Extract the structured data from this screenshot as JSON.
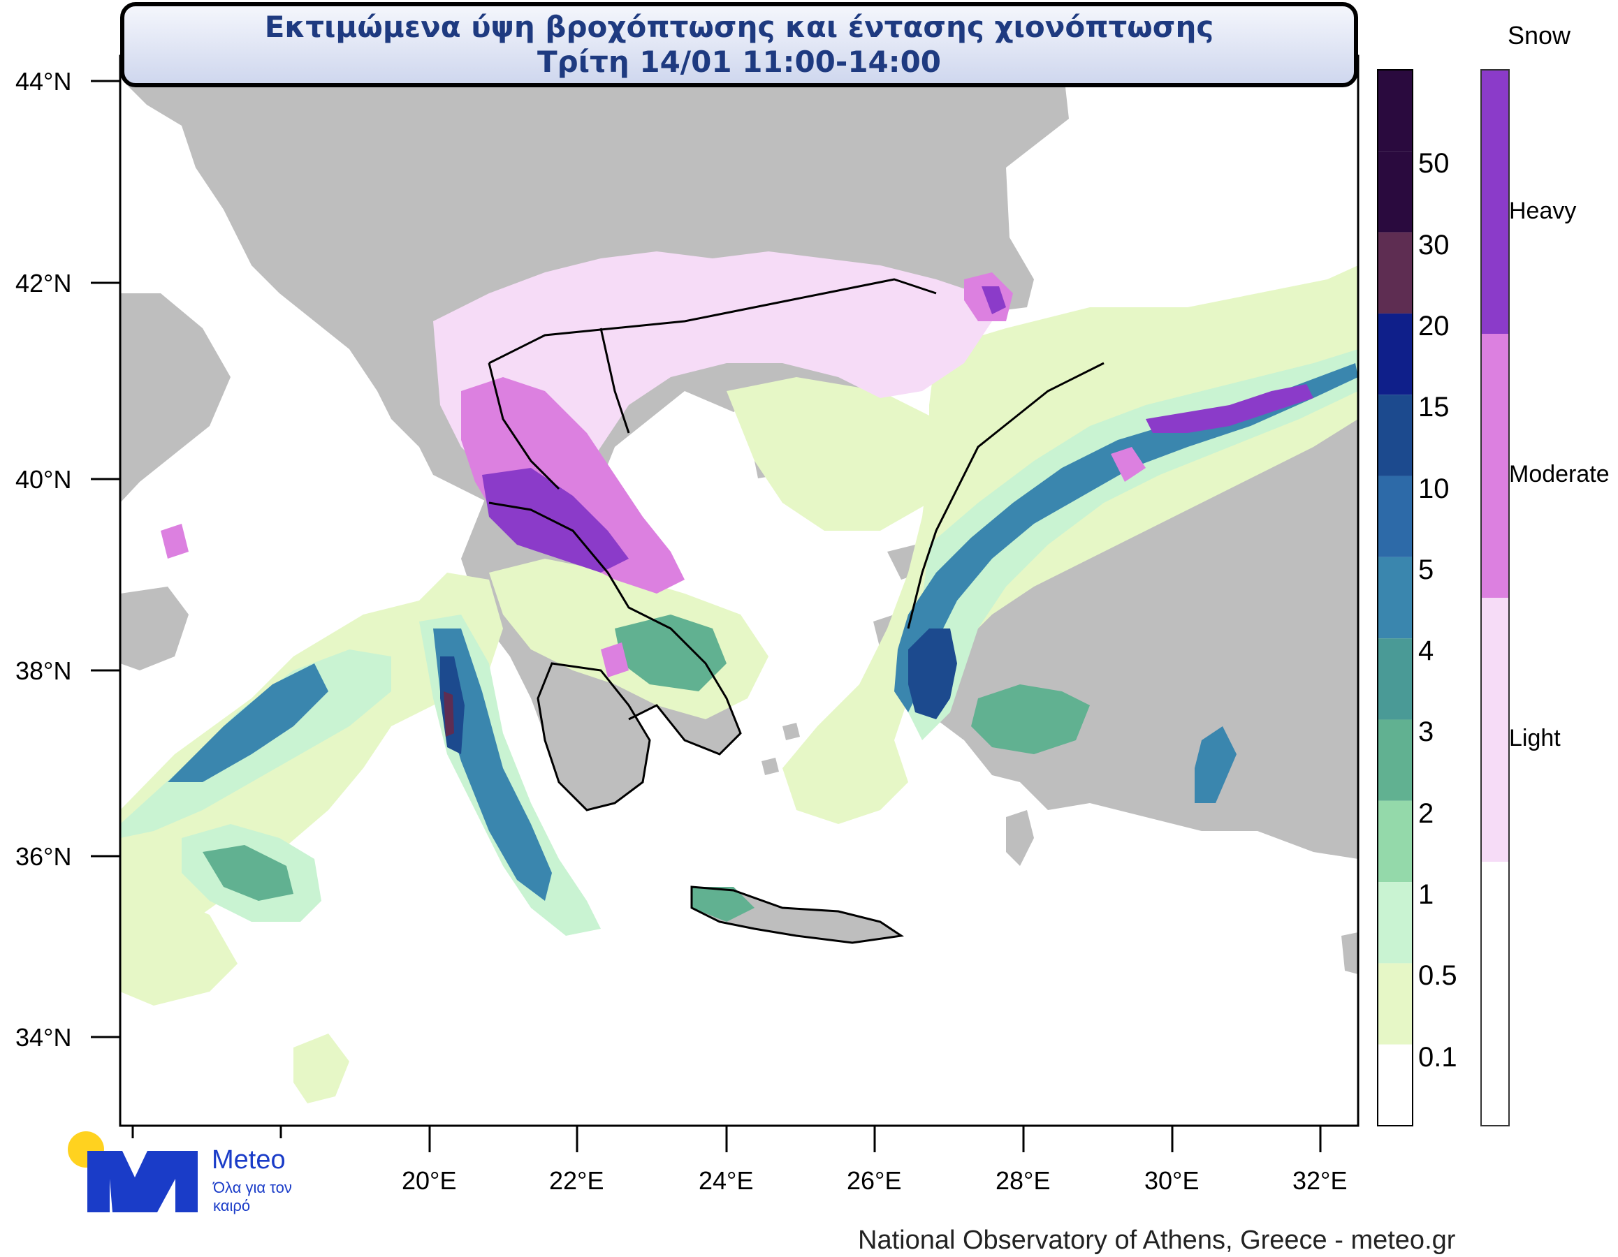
{
  "title": {
    "line1": "Εκτιμώμενα ύψη βροχόπτωσης και έντασης χιονόπτωσης",
    "line2": "Τρίτη 14/01 11:00-14:00"
  },
  "axes": {
    "latitude_ticks": [
      "44°N",
      "42°N",
      "40°N",
      "38°N",
      "36°N",
      "34°N"
    ],
    "longitude_ticks": [
      "20°E",
      "22°E",
      "24°E",
      "26°E",
      "28°E",
      "30°E",
      "32°E"
    ]
  },
  "precip_colorbar": {
    "levels": [
      "50",
      "30",
      "20",
      "15",
      "10",
      "5",
      "4",
      "3",
      "2",
      "1",
      "0.5",
      "0.1"
    ],
    "colors": [
      "#2a0a3e",
      "#5e2d52",
      "#0f1f8a",
      "#1c4a8e",
      "#2d6aa8",
      "#3a86ae",
      "#4a9a96",
      "#61b191",
      "#94d9aa",
      "#c9f3d2",
      "#e6f7c6",
      "#ffffff"
    ]
  },
  "snow_legend": {
    "title": "Snow",
    "classes": [
      {
        "label": "Heavy",
        "color": "#8b3bc9"
      },
      {
        "label": "Moderate",
        "color": "#dc80e0"
      },
      {
        "label": "Light",
        "color": "#f6dcf7"
      }
    ]
  },
  "map_colors": {
    "land": "#bebebe",
    "sea": "#ffffff",
    "coast": "#000000"
  },
  "logo": {
    "brand": "Meteo",
    "tagline": "Όλα για τον καιρό"
  },
  "credit": "National Observatory of Athens, Greece - meteo.gr"
}
